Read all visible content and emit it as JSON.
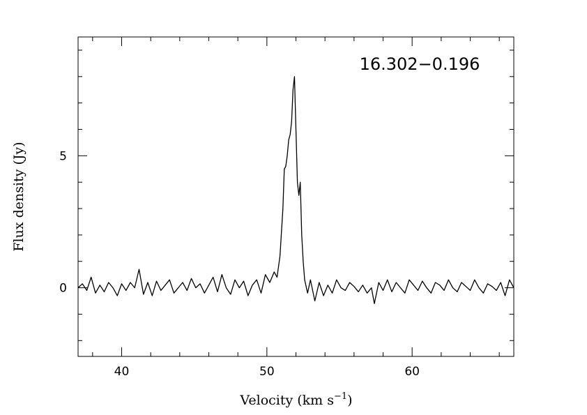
{
  "chart_data": {
    "type": "line",
    "title": "",
    "annotation": "16.302−0.196",
    "xlabel_main": "Velocity (km s",
    "xlabel_exp": "−1",
    "xlabel_close": ")",
    "ylabel": "Flux density (Jy)",
    "xlim": [
      37,
      67
    ],
    "ylim": [
      -2.6,
      9.5
    ],
    "xticks": [
      40,
      50,
      60
    ],
    "yticks": [
      0,
      5
    ],
    "grid": false,
    "series": [
      {
        "x": [
          37.0,
          37.3,
          37.6,
          37.9,
          38.2,
          38.5,
          38.8,
          39.1,
          39.4,
          39.7,
          40.0,
          40.3,
          40.6,
          40.9,
          41.2,
          41.5,
          41.8,
          42.1,
          42.4,
          42.7,
          43.0,
          43.3,
          43.6,
          43.9,
          44.2,
          44.5,
          44.8,
          45.1,
          45.4,
          45.7,
          46.0,
          46.3,
          46.6,
          46.9,
          47.2,
          47.5,
          47.8,
          48.1,
          48.4,
          48.7,
          49.0,
          49.3,
          49.6,
          49.9,
          50.2,
          50.5,
          50.7,
          50.9,
          51.1,
          51.2,
          51.3,
          51.4,
          51.5,
          51.6,
          51.7,
          51.8,
          51.9,
          52.0,
          52.1,
          52.2,
          52.3,
          52.4,
          52.5,
          52.6,
          52.8,
          53.0,
          53.3,
          53.6,
          53.9,
          54.2,
          54.5,
          54.8,
          55.1,
          55.4,
          55.7,
          56.0,
          56.3,
          56.6,
          56.9,
          57.2,
          57.4,
          57.7,
          58.0,
          58.3,
          58.6,
          58.9,
          59.2,
          59.5,
          59.8,
          60.1,
          60.4,
          60.7,
          61.0,
          61.3,
          61.6,
          61.9,
          62.2,
          62.5,
          62.8,
          63.1,
          63.4,
          63.7,
          64.0,
          64.3,
          64.6,
          64.9,
          65.2,
          65.5,
          65.8,
          66.1,
          66.4,
          66.7,
          67.0
        ],
        "y": [
          0.0,
          0.15,
          -0.1,
          0.4,
          -0.2,
          0.1,
          -0.15,
          0.2,
          0.0,
          -0.3,
          0.15,
          -0.1,
          0.2,
          0.0,
          0.7,
          -0.25,
          0.2,
          -0.3,
          0.25,
          -0.1,
          0.1,
          0.3,
          -0.2,
          0.0,
          0.2,
          -0.1,
          0.35,
          0.0,
          0.15,
          -0.2,
          0.1,
          0.4,
          -0.15,
          0.5,
          0.0,
          -0.25,
          0.3,
          0.0,
          0.25,
          -0.3,
          0.1,
          0.3,
          -0.2,
          0.5,
          0.2,
          0.6,
          0.4,
          1.2,
          3.0,
          4.5,
          4.6,
          5.0,
          5.6,
          5.8,
          6.3,
          7.5,
          8.0,
          6.0,
          4.0,
          3.5,
          4.0,
          2.0,
          1.0,
          0.3,
          -0.2,
          0.3,
          -0.5,
          0.2,
          -0.3,
          0.1,
          -0.2,
          0.3,
          0.0,
          -0.1,
          0.2,
          0.05,
          -0.15,
          0.1,
          -0.2,
          0.0,
          -0.6,
          0.2,
          -0.1,
          0.3,
          -0.15,
          0.2,
          0.0,
          -0.2,
          0.3,
          0.1,
          -0.1,
          0.25,
          0.0,
          -0.2,
          0.2,
          0.1,
          -0.1,
          0.3,
          0.0,
          -0.15,
          0.2,
          0.05,
          -0.1,
          0.3,
          0.0,
          -0.2,
          0.15,
          0.05,
          -0.1,
          0.2,
          -0.3,
          0.3,
          0.0
        ]
      }
    ]
  }
}
